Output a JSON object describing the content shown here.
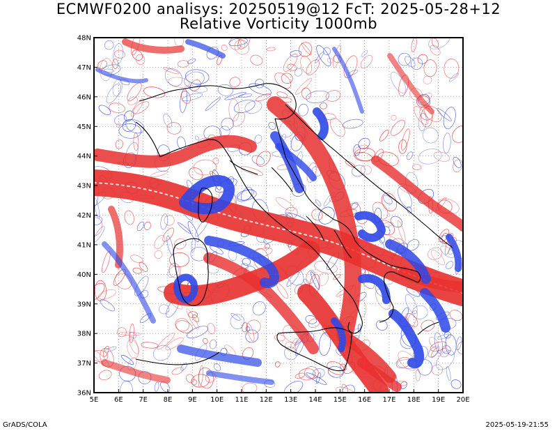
{
  "title_line1": "ECMWF0200 analisys: 20250519@12 FcT: 2025-05-28+12",
  "title_line2": "Relative Vorticity 1000mb",
  "lat_labels": [
    "36N",
    "37N",
    "38N",
    "39N",
    "40N",
    "41N",
    "42N",
    "43N",
    "44N",
    "45N",
    "46N",
    "47N",
    "48N"
  ],
  "lon_labels": [
    "5E",
    "6E",
    "7E",
    "8E",
    "9E",
    "10E",
    "11E",
    "12E",
    "13E",
    "14E",
    "15E",
    "16E",
    "17E",
    "18E",
    "19E",
    "20E"
  ],
  "colors": {
    "positive": "#e8302e",
    "negative": "#2e48e8",
    "coast": "#000000"
  },
  "footer_left": "GrADS/COLA",
  "footer_right": "2025-05-19-21:55"
}
